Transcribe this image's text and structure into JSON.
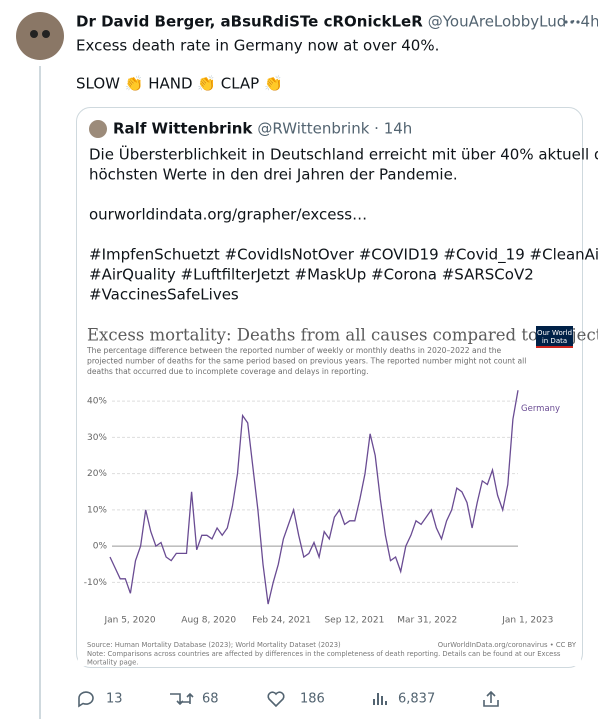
{
  "tweet": {
    "author_name": "Dr David Berger, aBsuRdiSTe cROnickLeR",
    "handle_line": "@YouAreLobbyLud · 4h",
    "paragraphs": [
      [
        "Excess death rate in Germany now at over 40%."
      ],
      [
        "SLOW 👏 HAND 👏 CLAP 👏"
      ]
    ],
    "quote": {
      "author_name": "Ralf Wittenbrink",
      "handle_line": "@RWittenbrink · 14h",
      "paragraphs": [
        [
          "Die Übersterblichkeit in Deutschland erreicht mit über 40% aktuell die",
          "höchsten Werte in den drei Jahren der Pandemie."
        ],
        [
          "ourworldindata.org/grapher/excess…"
        ],
        [
          "#ImpfenSchuetzt #CovidIsNotOver #COVID19 #Covid_19 #CleanAir",
          "#AirQuality #LuftfilterJetzt #MaskUp #Corona #SARSCoV2",
          "#VaccinesSafeLives"
        ]
      ]
    },
    "stats": {
      "replies": "13",
      "retweets": "68",
      "likes": "186",
      "views": "6,837"
    }
  },
  "chart_data": {
    "type": "line",
    "title": "Excess mortality: Deaths from all causes compared to projection",
    "subtitle": [
      "The percentage difference between the reported number of weekly or monthly deaths in 2020–2022 and the",
      "projected number of deaths for the same period based on previous years. The reported number might not count all",
      "deaths that occurred due to incomplete coverage and delays in reporting."
    ],
    "logo": [
      "Our World",
      "in Data"
    ],
    "source": "Source: Human Mortality Database (2023); World Mortality Dataset (2023)",
    "source_right": "OurWorldInData.org/coronavirus • CC BY",
    "note": [
      "Note: Comparisons across countries are affected by differences in the completeness of death reporting. Details can be found at our Excess",
      "Mortality page."
    ],
    "x": [
      "2020-01-05",
      "2020-01-19",
      "2020-02-02",
      "2020-02-16",
      "2020-03-01",
      "2020-03-15",
      "2020-03-29",
      "2020-04-12",
      "2020-04-26",
      "2020-05-10",
      "2020-05-24",
      "2020-06-07",
      "2020-06-21",
      "2020-07-05",
      "2020-07-19",
      "2020-08-02",
      "2020-08-16",
      "2020-08-30",
      "2020-09-13",
      "2020-09-27",
      "2020-10-11",
      "2020-10-25",
      "2020-11-08",
      "2020-11-22",
      "2020-12-06",
      "2020-12-20",
      "2021-01-03",
      "2021-01-17",
      "2021-01-31",
      "2021-02-14",
      "2021-02-28",
      "2021-03-14",
      "2021-03-28",
      "2021-04-11",
      "2021-04-25",
      "2021-05-09",
      "2021-05-23",
      "2021-06-06",
      "2021-06-20",
      "2021-07-04",
      "2021-07-18",
      "2021-08-01",
      "2021-08-15",
      "2021-08-29",
      "2021-09-12",
      "2021-09-26",
      "2021-10-10",
      "2021-10-24",
      "2021-11-07",
      "2021-11-21",
      "2021-12-05",
      "2021-12-19",
      "2022-01-02",
      "2022-01-16",
      "2022-01-30",
      "2022-02-13",
      "2022-02-27",
      "2022-03-13",
      "2022-03-27",
      "2022-04-10",
      "2022-04-24",
      "2022-05-08",
      "2022-05-22",
      "2022-06-05",
      "2022-06-19",
      "2022-07-03",
      "2022-07-17",
      "2022-07-31",
      "2022-08-14",
      "2022-08-28",
      "2022-09-11",
      "2022-09-25",
      "2022-10-09",
      "2022-10-23",
      "2022-11-06",
      "2022-11-20",
      "2022-12-04",
      "2022-12-18",
      "2023-01-01",
      "2023-01-15",
      "2023-01-29"
    ],
    "series": [
      {
        "name": "Germany",
        "color": "#6a4c93",
        "values": [
          -3,
          -6,
          -9,
          -9,
          -13,
          -4,
          0,
          10,
          4,
          0,
          1,
          -3,
          -4,
          -2,
          -2,
          -2,
          15,
          -1,
          3,
          3,
          2,
          5,
          3,
          5,
          11,
          20,
          36,
          34,
          22,
          10,
          -5,
          -16,
          -10,
          -5,
          2,
          6,
          10,
          3,
          -3,
          -2,
          1,
          -3,
          4,
          2,
          8,
          10,
          6,
          7,
          7,
          13,
          20,
          31,
          25,
          13,
          3,
          -4,
          -3,
          -7,
          0,
          3,
          7,
          6,
          8,
          10,
          5,
          2,
          7,
          10,
          16,
          15,
          12,
          5,
          12,
          18,
          17,
          21,
          14,
          10,
          17,
          35,
          43
        ]
      }
    ],
    "xlim": [
      "2020-01-05",
      "2023-01-29"
    ],
    "xticks": [
      {
        "value": "2020-01-05",
        "label": "Jan 5, 2020"
      },
      {
        "value": "2020-08-08",
        "label": "Aug 8, 2020"
      },
      {
        "value": "2021-02-24",
        "label": "Feb 24, 2021"
      },
      {
        "value": "2021-09-12",
        "label": "Sep 12, 2021"
      },
      {
        "value": "2022-03-31",
        "label": "Mar 31, 2022"
      },
      {
        "value": "2023-01-01",
        "label": "Jan 1, 2023"
      }
    ],
    "ylim": [
      -15,
      45
    ],
    "yticks": [
      {
        "value": -10,
        "label": "-10%"
      },
      {
        "value": 0,
        "label": "0%"
      },
      {
        "value": 10,
        "label": "10%"
      },
      {
        "value": 20,
        "label": "20%"
      },
      {
        "value": 30,
        "label": "30%"
      },
      {
        "value": 40,
        "label": "40%"
      }
    ],
    "grid": true
  }
}
